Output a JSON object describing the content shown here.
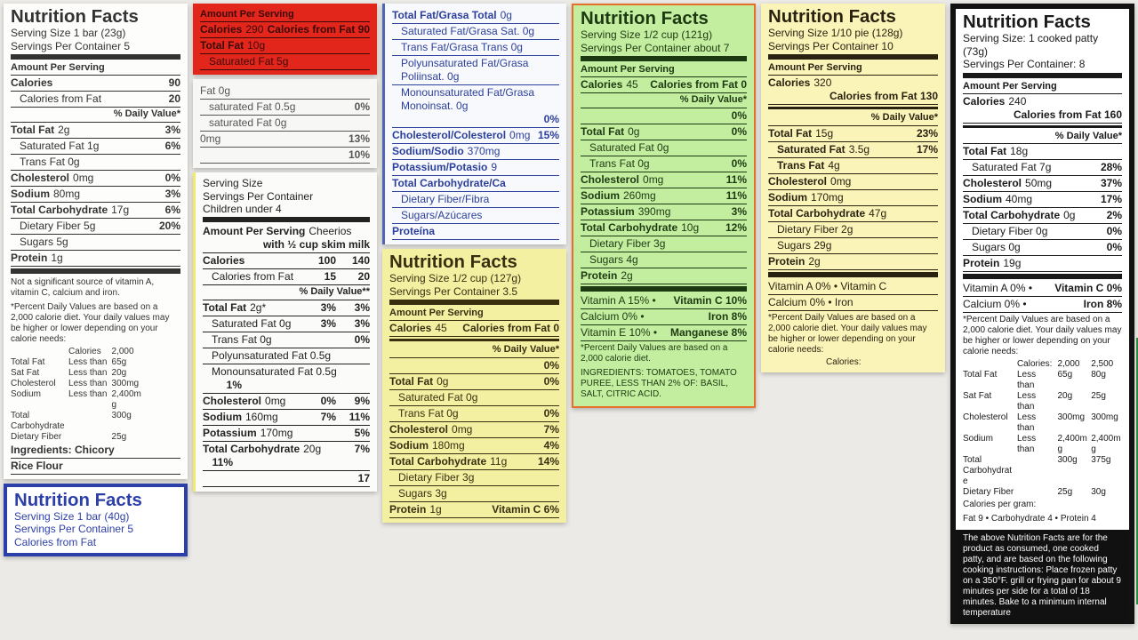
{
  "labels": [
    {
      "lines": [
        {
          "k": "small",
          "t": "Amount Per Serving"
        },
        {
          "k": "cal",
          "b": "Calories",
          "t": "290",
          "v": "Calories from Fat 90"
        },
        {
          "k": "row",
          "b": "Total Fat",
          "t": "10g"
        },
        {
          "k": "ind",
          "t": "Saturated Fat 5g"
        }
      ]
    },
    {
      "lines": [
        {
          "k": "row",
          "t": "Fat 0g"
        },
        {
          "k": "ind",
          "t": "saturated Fat 0.5g",
          "v": "0%"
        },
        {
          "k": "ind",
          "t": "saturated Fat 0g"
        },
        {
          "k": "row",
          "t": "0mg",
          "v": "13%"
        },
        {
          "k": "row",
          "t": "",
          "v": "10%"
        }
      ]
    },
    {
      "lines": [
        {
          "k": "row",
          "b": "Total Fat/Grasa Total",
          "t": "0g"
        },
        {
          "k": "ind",
          "t": "Saturated Fat/Grasa Sat. 0g"
        },
        {
          "k": "ind",
          "t": "Trans Fat/Grasa Trans 0g"
        },
        {
          "k": "ind",
          "t": "Polyunsaturated Fat/Grasa Poliinsat. 0g"
        },
        {
          "k": "ind",
          "t": "Monounsaturated Fat/Grasa Monoinsat. 0g",
          "v": "0%"
        },
        {
          "k": "row",
          "b": "Cholesterol/Colesterol",
          "t": "0mg",
          "v": "15%"
        },
        {
          "k": "row",
          "b": "Sodium/Sodio",
          "t": "370mg"
        },
        {
          "k": "row",
          "b": "Potassium/Potasio",
          "t": "9"
        },
        {
          "k": "row",
          "b": "Total Carbohydrate/Ca"
        },
        {
          "k": "ind",
          "t": "Dietary Fiber/Fibra"
        },
        {
          "k": "ind",
          "t": "Sugars/Azúcares"
        },
        {
          "k": "row",
          "b": "Proteína"
        }
      ]
    },
    {
      "lines": [
        {
          "k": "sub",
          "t": "Serving Size"
        },
        {
          "k": "sub",
          "t": "Servings Per Container"
        },
        {
          "k": "sub",
          "t": "Children under 4"
        },
        {
          "k": "bar"
        },
        {
          "k": "row",
          "b": "Amount Per Serving",
          "t": "Cheerios",
          "v": "with ½ cup skim milk"
        },
        {
          "k": "row",
          "b": "Calories",
          "v": "100",
          "v2": "140"
        },
        {
          "k": "ind",
          "t": "Calories from Fat",
          "v": "15",
          "v2": "20"
        },
        {
          "k": "dv",
          "t": "% Daily Value**"
        },
        {
          "k": "row",
          "b": "Total Fat",
          "t": "2g*",
          "v": "3%",
          "v2": "3%"
        },
        {
          "k": "ind",
          "t": "Saturated Fat 0g",
          "v": "3%",
          "v2": "3%"
        },
        {
          "k": "ind",
          "t": "Trans Fat 0g",
          "v": "0%"
        },
        {
          "k": "ind",
          "t": "Polyunsaturated Fat 0.5g"
        },
        {
          "k": "ind",
          "t": "Monounsaturated Fat 0.5g",
          "v2": "1%"
        },
        {
          "k": "row",
          "b": "Cholesterol",
          "t": "0mg",
          "v": "0%",
          "v2": "9%"
        },
        {
          "k": "row",
          "b": "Sodium",
          "t": "160mg",
          "v": "7%",
          "v2": "11%"
        },
        {
          "k": "row",
          "b": "Potassium",
          "t": "170mg",
          "v": "5%"
        },
        {
          "k": "row",
          "b": "Total Carbohydrate",
          "t": "20g",
          "v": "7%",
          "v2": "11%"
        },
        {
          "k": "row",
          "t": "",
          "v": "17"
        }
      ]
    },
    {
      "lines": [
        {
          "k": "title",
          "t": "Nutrition Facts"
        },
        {
          "k": "sub",
          "t": "Serving Size 1 bar (23g)"
        },
        {
          "k": "sub",
          "t": "Servings Per Container 5"
        },
        {
          "k": "bar"
        },
        {
          "k": "small",
          "t": "Amount Per Serving"
        },
        {
          "k": "row",
          "b": "Calories",
          "v": "90"
        },
        {
          "k": "ind",
          "t": "Calories from Fat",
          "v": "20"
        },
        {
          "k": "dv",
          "t": "% Daily Value*"
        },
        {
          "k": "row",
          "b": "Total Fat",
          "t": "2g",
          "v": "3%"
        },
        {
          "k": "ind",
          "t": "Saturated Fat 1g",
          "v": "6%"
        },
        {
          "k": "ind",
          "t": "Trans Fat 0g"
        },
        {
          "k": "row",
          "b": "Cholesterol",
          "t": "0mg",
          "v": "0%"
        },
        {
          "k": "row",
          "b": "Sodium",
          "t": "80mg",
          "v": "3%"
        },
        {
          "k": "row",
          "b": "Total Carbohydrate",
          "t": "17g",
          "v": "6%"
        },
        {
          "k": "ind",
          "t": "Dietary Fiber 5g",
          "v": "20%"
        },
        {
          "k": "ind",
          "t": "Sugars 5g"
        },
        {
          "k": "row",
          "b": "Protein",
          "t": "1g"
        },
        {
          "k": "bar"
        },
        {
          "k": "note",
          "t": "Not a significant source of vitamin A, vitamin C, calcium and iron."
        },
        {
          "k": "note",
          "t": "*Percent Daily Values are based on a 2,000 calorie diet. Your daily values may be higher or lower depending on your calorie needs:"
        },
        {
          "k": "tbl",
          "c": [
            "",
            "Calories",
            "2,000",
            ""
          ]
        },
        {
          "k": "tbl",
          "c": [
            "Total Fat",
            "Less than",
            "65g",
            ""
          ]
        },
        {
          "k": "tbl",
          "c": [
            "Sat Fat",
            "Less than",
            "20g",
            ""
          ]
        },
        {
          "k": "tbl",
          "c": [
            "Cholesterol",
            "Less than",
            "300mg",
            ""
          ]
        },
        {
          "k": "tbl",
          "c": [
            "Sodium",
            "Less than",
            "2,400mg",
            ""
          ]
        },
        {
          "k": "tbl",
          "c": [
            "Total Carbohydrate",
            "",
            "300g",
            ""
          ]
        },
        {
          "k": "tbl",
          "c": [
            "Dietary Fiber",
            "",
            "25g",
            ""
          ]
        },
        {
          "k": "row",
          "b": "Ingredients: Chicory"
        },
        {
          "k": "row",
          "b": "Rice Flour"
        }
      ]
    },
    {
      "lines": [
        {
          "k": "title",
          "t": "Nutrition Facts"
        },
        {
          "k": "sub",
          "t": "Serving Size 1 bar (40g)"
        },
        {
          "k": "sub",
          "t": "Servings Per Container 5"
        },
        {
          "k": "sub",
          "t": "Calories from Fat"
        }
      ]
    },
    {
      "lines": [
        {
          "k": "title",
          "t": "Nutrition Facts"
        },
        {
          "k": "sub",
          "t": "Serving Size 1/2 cup (127g)"
        },
        {
          "k": "sub",
          "t": "Servings Per Container 3.5"
        },
        {
          "k": "bar"
        },
        {
          "k": "small",
          "t": "Amount Per Serving"
        },
        {
          "k": "cal",
          "b": "Calories",
          "t": "45",
          "v": "Calories from Fat 0"
        },
        {
          "k": "thin"
        },
        {
          "k": "dv",
          "t": "% Daily Value*"
        },
        {
          "k": "row",
          "t": "",
          "v": "0%"
        },
        {
          "k": "row",
          "b": "Total Fat",
          "t": "0g",
          "v": "0%"
        },
        {
          "k": "ind",
          "t": "Saturated Fat 0g"
        },
        {
          "k": "ind",
          "t": "Trans Fat 0g",
          "v": "0%"
        },
        {
          "k": "row",
          "b": "Cholesterol",
          "t": "0mg",
          "v": "7%"
        },
        {
          "k": "row",
          "b": "Sodium",
          "t": "180mg",
          "v": "4%"
        },
        {
          "k": "row",
          "b": "Total Carbohydrate",
          "t": "11g",
          "v": "14%"
        },
        {
          "k": "ind",
          "t": "Dietary Fiber 3g"
        },
        {
          "k": "ind",
          "t": "Sugars 3g"
        },
        {
          "k": "row",
          "b": "Protein",
          "t": "1g",
          "v": "Vitamin C 6%"
        }
      ]
    },
    {
      "lines": [
        {
          "k": "title",
          "t": "Nutrition Facts"
        },
        {
          "k": "sub",
          "t": "Serving Size 1/2 cup (121g)"
        },
        {
          "k": "sub",
          "t": "Servings Per Container about 7"
        },
        {
          "k": "bar"
        },
        {
          "k": "small",
          "t": "Amount Per Serving"
        },
        {
          "k": "cal",
          "b": "Calories",
          "t": "45",
          "v": "Calories from Fat 0"
        },
        {
          "k": "dv",
          "t": "% Daily Value*"
        },
        {
          "k": "row",
          "t": "",
          "v": "0%"
        },
        {
          "k": "row",
          "b": "Total Fat",
          "t": "0g",
          "v": "0%"
        },
        {
          "k": "ind",
          "t": "Saturated Fat 0g"
        },
        {
          "k": "ind",
          "t": "Trans Fat 0g",
          "v": "0%"
        },
        {
          "k": "row",
          "b": "Cholesterol",
          "t": "0mg",
          "v": "11%"
        },
        {
          "k": "row",
          "b": "Sodium",
          "t": "260mg",
          "v": "11%"
        },
        {
          "k": "row",
          "b": "Potassium",
          "t": "390mg",
          "v": "3%"
        },
        {
          "k": "row",
          "b": "Total Carbohydrate",
          "t": "10g",
          "v": "12%"
        },
        {
          "k": "ind",
          "t": "Dietary Fiber 3g"
        },
        {
          "k": "ind",
          "t": "Sugars 4g"
        },
        {
          "k": "row",
          "b": "Protein",
          "t": "2g"
        },
        {
          "k": "bar"
        },
        {
          "k": "row",
          "t": "Vitamin A 15% •",
          "v": "Vitamin C 10%"
        },
        {
          "k": "row",
          "t": "Calcium 0% •",
          "v": "Iron 8%"
        },
        {
          "k": "row",
          "t": "Vitamin E 10% •",
          "v": "Manganese 8%"
        },
        {
          "k": "note",
          "t": "*Percent Daily Values are based on a 2,000 calorie diet."
        },
        {
          "k": "note",
          "t": "INGREDIENTS: TOMATOES, TOMATO PUREE, LESS THAN 2% OF: BASIL, SALT, CITRIC ACID."
        }
      ]
    },
    {
      "lines": [
        {
          "k": "title",
          "t": "Nutrition Facts"
        },
        {
          "k": "sub",
          "t": "Serving Size 1/10 pie (128g)"
        },
        {
          "k": "sub",
          "t": "Servings Per Container 10"
        },
        {
          "k": "bar"
        },
        {
          "k": "small",
          "t": "Amount Per Serving"
        },
        {
          "k": "cal",
          "b": "Calories",
          "t": "320",
          "v": "Calories from Fat 130"
        },
        {
          "k": "thin"
        },
        {
          "k": "dv",
          "t": "% Daily Value*"
        },
        {
          "k": "row",
          "b": "Total Fat",
          "t": "15g",
          "v": "23%"
        },
        {
          "k": "ind",
          "b": "Saturated Fat",
          "t": "3.5g",
          "v": "17%"
        },
        {
          "k": "ind",
          "b": "Trans Fat",
          "t": "4g"
        },
        {
          "k": "row",
          "b": "Cholesterol",
          "t": "0mg"
        },
        {
          "k": "row",
          "b": "Sodium",
          "t": "170mg"
        },
        {
          "k": "row",
          "b": "Total Carbohydrate",
          "t": "47g"
        },
        {
          "k": "ind",
          "t": "Dietary Fiber 2g"
        },
        {
          "k": "ind",
          "t": "Sugars 29g"
        },
        {
          "k": "row",
          "b": "Protein",
          "t": "2g"
        },
        {
          "k": "bar"
        },
        {
          "k": "row",
          "t": "Vitamin A 0%  •  Vitamin C"
        },
        {
          "k": "row",
          "t": "Calcium 0%  •  Iron"
        },
        {
          "k": "note",
          "t": "*Percent Daily Values are based on a 2,000 calorie diet. Your daily values may be higher or lower depending on your calorie needs:"
        },
        {
          "k": "tbl",
          "c": [
            "",
            "Calories:",
            "",
            ""
          ]
        }
      ]
    },
    {
      "lines": [
        {
          "k": "title",
          "t": "Nutrition Facts"
        },
        {
          "k": "sub",
          "t": "Serving Size: 1 cooked patty (73g)"
        },
        {
          "k": "sub",
          "t": "Servings Per Container: 8"
        },
        {
          "k": "bar"
        },
        {
          "k": "small",
          "t": "Amount Per Serving"
        },
        {
          "k": "cal",
          "b": "Calories",
          "t": "240",
          "v": "Calories from Fat 160"
        },
        {
          "k": "thin"
        },
        {
          "k": "dv",
          "t": "% Daily Value*"
        },
        {
          "k": "row",
          "b": "Total Fat",
          "t": "18g"
        },
        {
          "k": "ind",
          "t": "Saturated Fat 7g",
          "v": "28%"
        },
        {
          "k": "row",
          "b": "Cholesterol",
          "t": "50mg",
          "v": "37%"
        },
        {
          "k": "row",
          "b": "Sodium",
          "t": "40mg",
          "v": "17%"
        },
        {
          "k": "row",
          "b": "Total Carbohydrate",
          "t": "0g",
          "v": "2%"
        },
        {
          "k": "ind",
          "t": "Dietary Fiber 0g",
          "v": "0%"
        },
        {
          "k": "ind",
          "t": "Sugars 0g",
          "v": "0%"
        },
        {
          "k": "row",
          "b": "Protein",
          "t": "19g"
        },
        {
          "k": "bar"
        },
        {
          "k": "row",
          "t": "Vitamin A 0%   •",
          "v": "Vitamin C 0%"
        },
        {
          "k": "row",
          "t": "Calcium 0%   •",
          "v": "Iron 8%"
        },
        {
          "k": "note",
          "t": "*Percent Daily Values are based on a 2,000 calorie diet. Your daily values may be higher or lower depending on your calorie needs:"
        },
        {
          "k": "tbl",
          "c": [
            "",
            "Calories:",
            "2,000",
            "2,500"
          ]
        },
        {
          "k": "tbl",
          "c": [
            "Total Fat",
            "Less than",
            "65g",
            "80g"
          ]
        },
        {
          "k": "tbl",
          "c": [
            "Sat Fat",
            "Less than",
            "20g",
            "25g"
          ]
        },
        {
          "k": "tbl",
          "c": [
            "Cholesterol",
            "Less than",
            "300mg",
            "300mg"
          ]
        },
        {
          "k": "tbl",
          "c": [
            "Sodium",
            "Less than",
            "2,400mg",
            "2,400mg"
          ]
        },
        {
          "k": "tbl",
          "c": [
            "Total Carbohydrate",
            "",
            "300g",
            "375g"
          ]
        },
        {
          "k": "tbl",
          "c": [
            "Dietary Fiber",
            "",
            "25g",
            "30g"
          ]
        },
        {
          "k": "note",
          "t": "Calories per gram:"
        },
        {
          "k": "note",
          "t": "Fat 9  •  Carbohydrate 4  •  Protein 4"
        },
        {
          "k": "foot",
          "t": "The above Nutrition Facts are for the product as consumed, one cooked patty, and are based on the following cooking instructions: Place frozen patty on a 350°F. grill or frying pan for about 9 minutes per side for a total of 18 minutes. Bake to a minimum internal temperature"
        }
      ]
    }
  ],
  "colors": {
    "red_label": "#e3261c",
    "blue_ink": "#2b3f9c",
    "yellow_label": "#f4f0a2",
    "green_label": "#c4ee9f",
    "pie_label": "#fbf4b9",
    "patty_frame": "#121212"
  }
}
